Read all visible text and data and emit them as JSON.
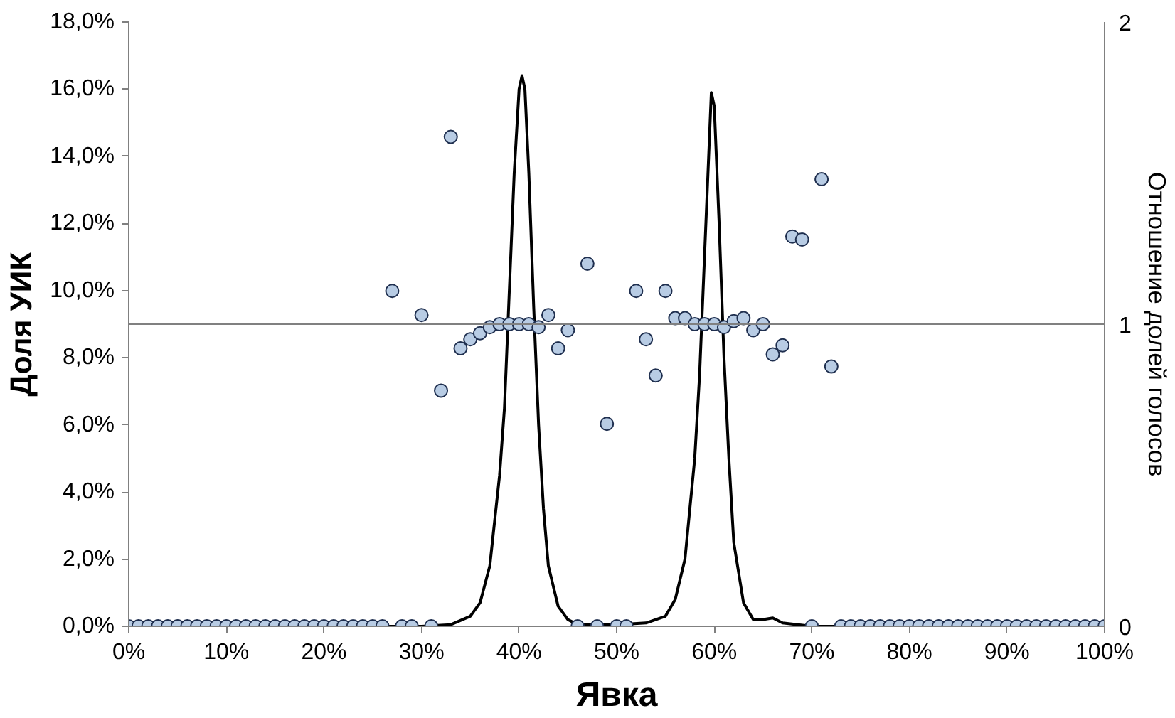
{
  "chart_data": {
    "type": "scatter",
    "xlabel": "Явка",
    "ylabel": "Доля УИК",
    "y2label": "Отношение долей голосов",
    "xlim": [
      0,
      100
    ],
    "xticks": [
      {
        "value": 0,
        "label": "0%"
      },
      {
        "value": 10,
        "label": "10%"
      },
      {
        "value": 20,
        "label": "20%"
      },
      {
        "value": 30,
        "label": "30%"
      },
      {
        "value": 40,
        "label": "40%"
      },
      {
        "value": 50,
        "label": "50%"
      },
      {
        "value": 60,
        "label": "60%"
      },
      {
        "value": 70,
        "label": "70%"
      },
      {
        "value": 80,
        "label": "80%"
      },
      {
        "value": 90,
        "label": "90%"
      },
      {
        "value": 100,
        "label": "100%"
      }
    ],
    "ylim": [
      0,
      18
    ],
    "yticks": [
      {
        "value": 0,
        "label": "0,0%"
      },
      {
        "value": 2,
        "label": "2,0%"
      },
      {
        "value": 4,
        "label": "4,0%"
      },
      {
        "value": 6,
        "label": "6,0%"
      },
      {
        "value": 8,
        "label": "8,0%"
      },
      {
        "value": 10,
        "label": "10,0%"
      },
      {
        "value": 12,
        "label": "12,0%"
      },
      {
        "value": 14,
        "label": "14,0%"
      },
      {
        "value": 16,
        "label": "16,0%"
      },
      {
        "value": 18,
        "label": "18,0%"
      }
    ],
    "y2lim": [
      0,
      2
    ],
    "y2ticks": [
      0,
      1,
      2
    ],
    "grid": false,
    "ref_lines": [
      {
        "axis": "y2",
        "value": 1,
        "color": "#808080"
      }
    ],
    "series": [
      {
        "type": "line",
        "color": "#000000",
        "x": [
          0,
          30,
          33,
          35,
          36,
          37,
          38,
          38.5,
          39,
          39.5,
          40,
          40.3,
          40.6,
          41,
          41.5,
          42,
          42.5,
          43,
          44,
          45,
          46,
          48,
          50,
          53,
          55,
          56,
          57,
          58,
          58.5,
          59,
          59.5,
          59.7,
          60,
          60.5,
          61,
          61.5,
          62,
          63,
          64,
          65,
          66,
          67,
          70,
          100
        ],
        "values": [
          0,
          0,
          0.05,
          0.3,
          0.7,
          1.8,
          4.5,
          6.5,
          10.0,
          13.5,
          16.0,
          16.4,
          16.0,
          13.5,
          9.5,
          6.0,
          3.5,
          1.8,
          0.6,
          0.2,
          0.05,
          0.05,
          0.05,
          0.1,
          0.3,
          0.8,
          2.0,
          5.0,
          7.5,
          11.0,
          14.5,
          15.9,
          15.5,
          12.0,
          8.0,
          5.0,
          2.5,
          0.7,
          0.2,
          0.2,
          0.25,
          0.1,
          0,
          0
        ]
      },
      {
        "axis": "y2",
        "marker": "circle",
        "color": "#b8cce4",
        "x": [
          0,
          1,
          2,
          3,
          4,
          5,
          6,
          7,
          8,
          9,
          10,
          11,
          12,
          13,
          14,
          15,
          16,
          17,
          18,
          19,
          20,
          21,
          22,
          23,
          24,
          25,
          26,
          27,
          28,
          29,
          30,
          31,
          32,
          33,
          34,
          35,
          36,
          37,
          38,
          39,
          40,
          41,
          42,
          43,
          44,
          45,
          46,
          47,
          48,
          49,
          50,
          51,
          52,
          53,
          54,
          55,
          56,
          57,
          58,
          59,
          60,
          61,
          62,
          63,
          64,
          65,
          66,
          67,
          68,
          69,
          70,
          71,
          72,
          73,
          74,
          75,
          76,
          77,
          78,
          79,
          80,
          81,
          82,
          83,
          84,
          85,
          86,
          87,
          88,
          89,
          90,
          91,
          92,
          93,
          94,
          95,
          96,
          97,
          98,
          99,
          100
        ],
        "values": [
          0,
          0,
          0,
          0,
          0,
          0,
          0,
          0,
          0,
          0,
          0,
          0,
          0,
          0,
          0,
          0,
          0,
          0,
          0,
          0,
          0,
          0,
          0,
          0,
          0,
          0,
          0,
          1.11,
          0,
          0,
          1.03,
          0,
          0.78,
          1.62,
          0.92,
          0.95,
          0.97,
          0.99,
          1.0,
          1.0,
          1.0,
          1.0,
          0.99,
          1.03,
          0.92,
          0.98,
          0,
          1.2,
          0,
          0.67,
          0,
          0,
          1.11,
          0.95,
          0.83,
          1.11,
          1.02,
          1.02,
          1.0,
          1.0,
          1.0,
          0.99,
          1.01,
          1.02,
          0.98,
          1.0,
          0.9,
          0.93,
          1.29,
          1.28,
          0,
          1.48,
          0.86,
          0,
          0,
          0,
          0,
          0,
          0,
          0,
          0,
          0,
          0,
          0,
          0,
          0,
          0,
          0,
          0,
          0,
          0,
          0,
          0,
          0,
          0,
          0,
          0,
          0,
          0,
          0,
          0
        ]
      }
    ]
  }
}
